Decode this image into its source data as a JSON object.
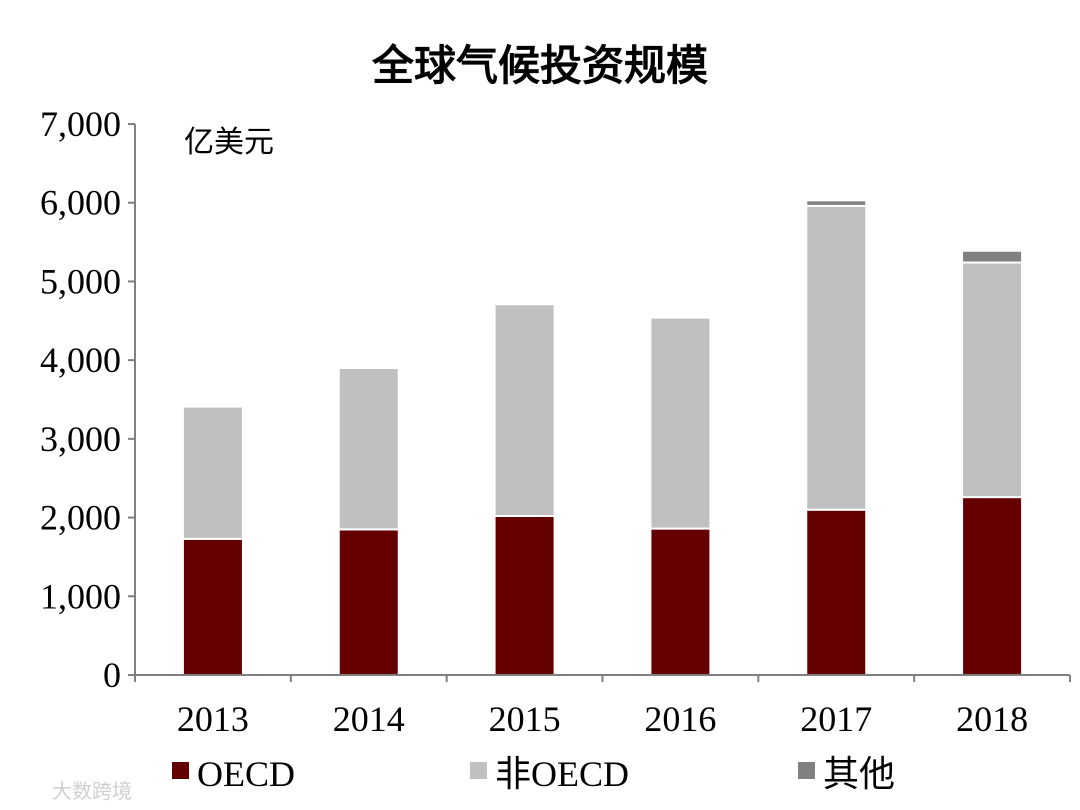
{
  "chart_data": {
    "type": "bar",
    "stacked": true,
    "title": "全球气候投资规模",
    "unit_label": "亿美元",
    "categories": [
      "2013",
      "2014",
      "2015",
      "2016",
      "2017",
      "2018"
    ],
    "series": [
      {
        "name": "OECD",
        "color": "#650000",
        "values": [
          1730,
          1850,
          2020,
          1860,
          2100,
          2260
        ]
      },
      {
        "name": "非OECD",
        "color": "#c0c0c0",
        "values": [
          1680,
          2050,
          2690,
          2680,
          3860,
          2980
        ]
      },
      {
        "name": "其他",
        "color": "#808080",
        "values": [
          0,
          0,
          0,
          0,
          70,
          150
        ]
      }
    ],
    "ylim": [
      0,
      7000
    ],
    "yticks": [
      "0",
      "1,000",
      "2,000",
      "3,000",
      "4,000",
      "5,000",
      "6,000",
      "7,000"
    ],
    "grid": false,
    "legend_position": "bottom"
  },
  "watermark": "大数跨境"
}
